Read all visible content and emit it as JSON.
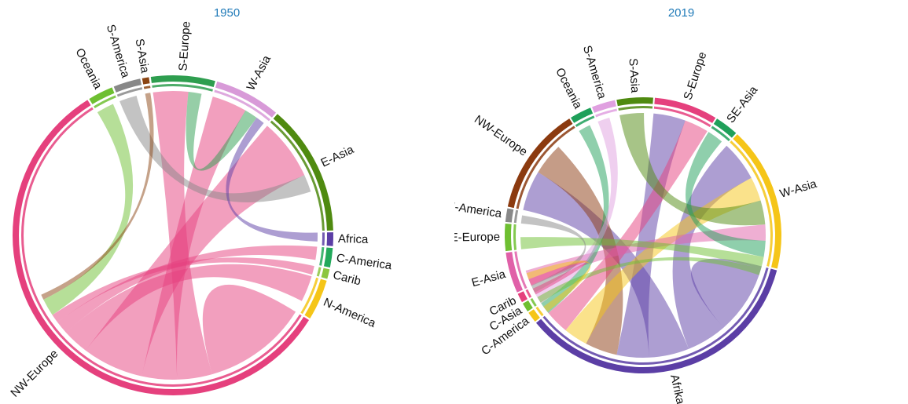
{
  "figures": [
    {
      "title": "1950",
      "regions": [
        {
          "label": "Oceania",
          "color": "#6ebf31",
          "value": 2.6
        },
        {
          "label": "S-America",
          "color": "#888888",
          "value": 2.8
        },
        {
          "label": "S-Asia",
          "color": "#8b4513",
          "value": 0.7
        },
        {
          "label": "S-Europe",
          "color": "#2e9e4f",
          "value": 6.6
        },
        {
          "label": "W-Asia",
          "color": "#d89ad8",
          "value": 6.8
        },
        {
          "label": "E-Asia",
          "color": "#4f8a10",
          "value": 13.5
        },
        {
          "label": "Africa",
          "color": "#5b3ea5",
          "value": 1.4
        },
        {
          "label": "C-America",
          "color": "#22a95b",
          "value": 2.0
        },
        {
          "label": "Carib",
          "color": "#8cc63f",
          "value": 1.0
        },
        {
          "label": "N-America",
          "color": "#f5c518",
          "value": 4.2
        },
        {
          "label": "NW-Europe",
          "color": "#e5407d",
          "value": 58.4
        }
      ],
      "flows": [
        {
          "from": "NW-Europe",
          "to": "NW-Europe",
          "value": 12
        },
        {
          "from": "NW-Europe",
          "to": "S-Europe",
          "value": 4
        },
        {
          "from": "NW-Europe",
          "to": "W-Asia",
          "value": 4
        },
        {
          "from": "NW-Europe",
          "to": "E-Asia",
          "value": 7
        },
        {
          "from": "NW-Europe",
          "to": "N-America",
          "value": 3
        },
        {
          "from": "NW-Europe",
          "to": "C-America",
          "value": 1.5
        },
        {
          "from": "NW-Europe",
          "to": "Carib",
          "value": 1
        },
        {
          "from": "Oceania",
          "to": "NW-Europe",
          "value": 2
        },
        {
          "from": "S-America",
          "to": "E-Asia",
          "value": 2
        },
        {
          "from": "S-Europe",
          "to": "W-Asia",
          "value": 1.5
        },
        {
          "from": "Africa",
          "to": "W-Asia",
          "value": 1
        },
        {
          "from": "S-Asia",
          "to": "NW-Europe",
          "value": 0.6
        }
      ]
    },
    {
      "title": "2019",
      "regions": [
        {
          "label": "Oceania",
          "color": "#1fa05a",
          "value": 2.4
        },
        {
          "label": "S-America",
          "color": "#e0a0e0",
          "value": 2.6
        },
        {
          "label": "S-Asia",
          "color": "#4f8a10",
          "value": 4.0
        },
        {
          "label": "S-Europe",
          "color": "#e5407d",
          "value": 7.0
        },
        {
          "label": "SE-Asia",
          "color": "#1fa05a",
          "value": 2.6
        },
        {
          "label": "W-Asia",
          "color": "#f5c518",
          "value": 16.0
        },
        {
          "label": "Afrika",
          "color": "#5b3ea5",
          "value": 33.0
        },
        {
          "label": "C-America",
          "color": "#f5c518",
          "value": 1.2
        },
        {
          "label": "C-Asia",
          "color": "#6ebf31",
          "value": 1.0
        },
        {
          "label": "Carib",
          "color": "#e5407d",
          "value": 1.0
        },
        {
          "label": "E-Asia",
          "color": "#e060a8",
          "value": 4.5
        },
        {
          "label": "E-Europe",
          "color": "#6ebf31",
          "value": 3.0
        },
        {
          "label": "N-America",
          "color": "#888888",
          "value": 1.5
        },
        {
          "label": "NW-Europe",
          "color": "#8b3a0f",
          "value": 12.0
        }
      ],
      "flows": [
        {
          "from": "Afrika",
          "to": "Afrika",
          "value": 9
        },
        {
          "from": "Afrika",
          "to": "W-Asia",
          "value": 5
        },
        {
          "from": "Afrika",
          "to": "NW-Europe",
          "value": 5
        },
        {
          "from": "Afrika",
          "to": "S-Europe",
          "value": 4
        },
        {
          "from": "NW-Europe",
          "to": "Afrika",
          "value": 4
        },
        {
          "from": "W-Asia",
          "to": "Afrika",
          "value": 3
        },
        {
          "from": "S-Europe",
          "to": "Afrika",
          "value": 3
        },
        {
          "from": "S-Asia",
          "to": "W-Asia",
          "value": 3
        },
        {
          "from": "E-Asia",
          "to": "W-Asia",
          "value": 2
        },
        {
          "from": "Oceania",
          "to": "Afrika",
          "value": 1.5
        },
        {
          "from": "S-America",
          "to": "Afrika",
          "value": 1.5
        },
        {
          "from": "SE-Asia",
          "to": "W-Asia",
          "value": 2
        },
        {
          "from": "E-Europe",
          "to": "W-Asia",
          "value": 1.5
        },
        {
          "from": "N-America",
          "to": "Afrika",
          "value": 1
        },
        {
          "from": "Carib",
          "to": "Afrika",
          "value": 0.8
        },
        {
          "from": "C-Asia",
          "to": "W-Asia",
          "value": 0.8
        },
        {
          "from": "C-America",
          "to": "Afrika",
          "value": 0.8
        }
      ]
    }
  ]
}
